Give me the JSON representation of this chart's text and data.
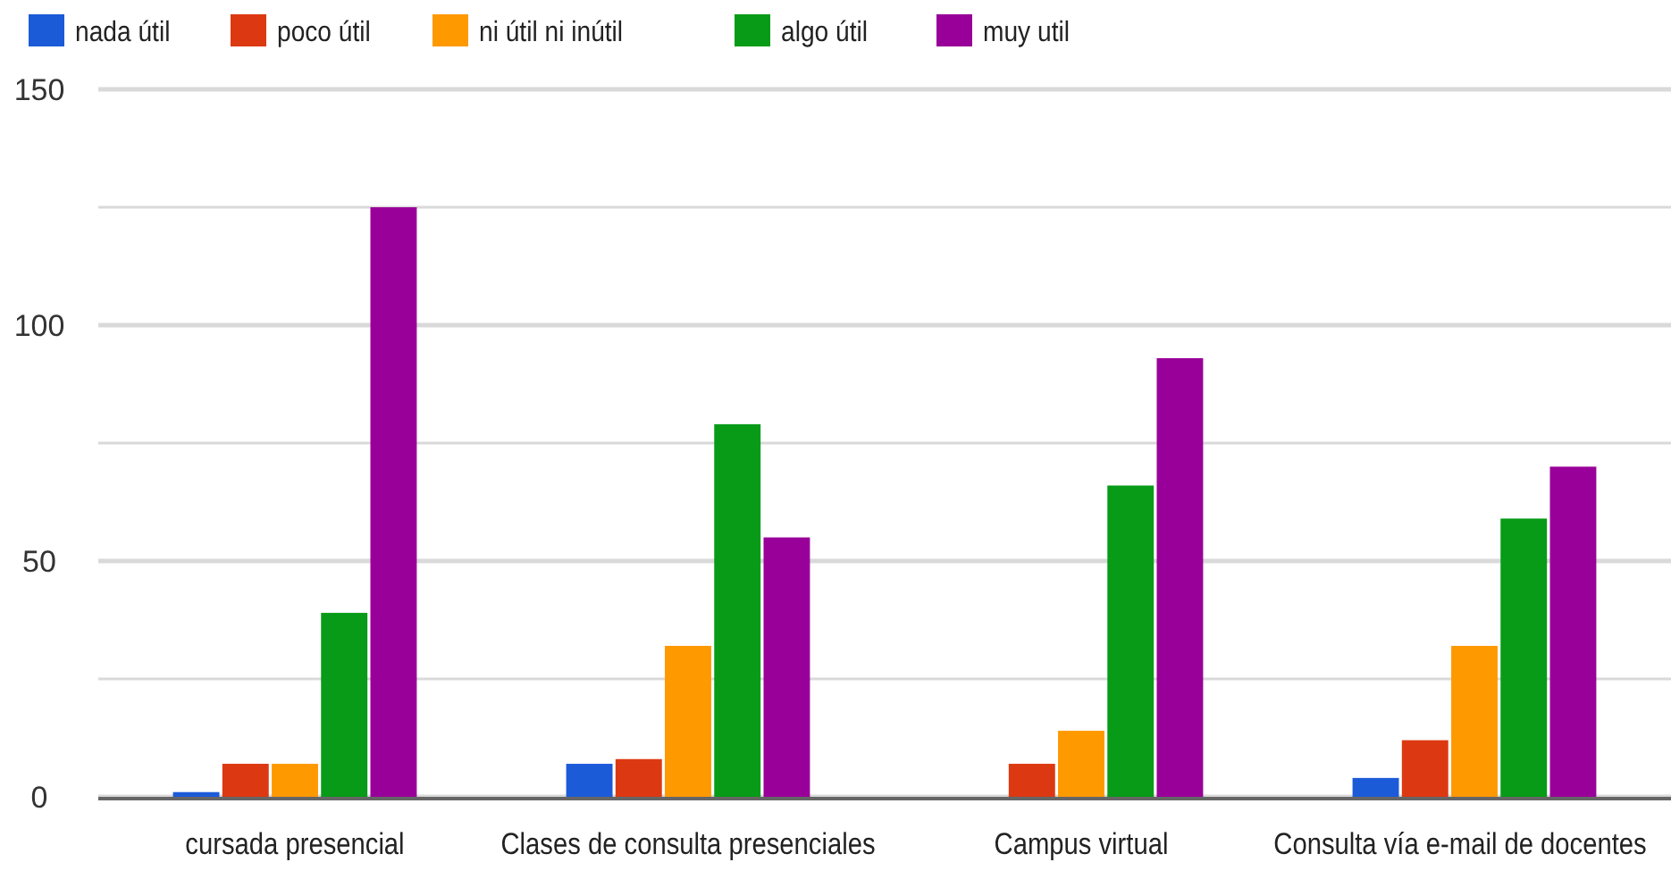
{
  "chart_data": {
    "type": "bar",
    "categories": [
      "cursada presencial",
      "Clases de consulta presenciales",
      "Campus virtual",
      "Consulta vía e-mail de docentes"
    ],
    "series": [
      {
        "name": "nada útil",
        "color": "#1c5bd8",
        "values": [
          1,
          7,
          0,
          4
        ]
      },
      {
        "name": "poco útil",
        "color": "#dc3912",
        "values": [
          7,
          8,
          7,
          12
        ]
      },
      {
        "name": "ni útil ni inútil",
        "color": "#ff9900",
        "values": [
          7,
          32,
          14,
          32
        ]
      },
      {
        "name": "algo útil",
        "color": "#079b17",
        "values": [
          39,
          79,
          66,
          59
        ]
      },
      {
        "name": "muy util",
        "color": "#990099",
        "values": [
          125,
          55,
          93,
          70
        ]
      }
    ],
    "ylim": [
      0,
      150
    ],
    "yticks": [
      0,
      {
        "value": 25,
        "label": null
      },
      50,
      {
        "value": 75,
        "label": null
      },
      100,
      {
        "value": 125,
        "label": null
      },
      150
    ],
    "grid": "y",
    "legend": "top left"
  }
}
